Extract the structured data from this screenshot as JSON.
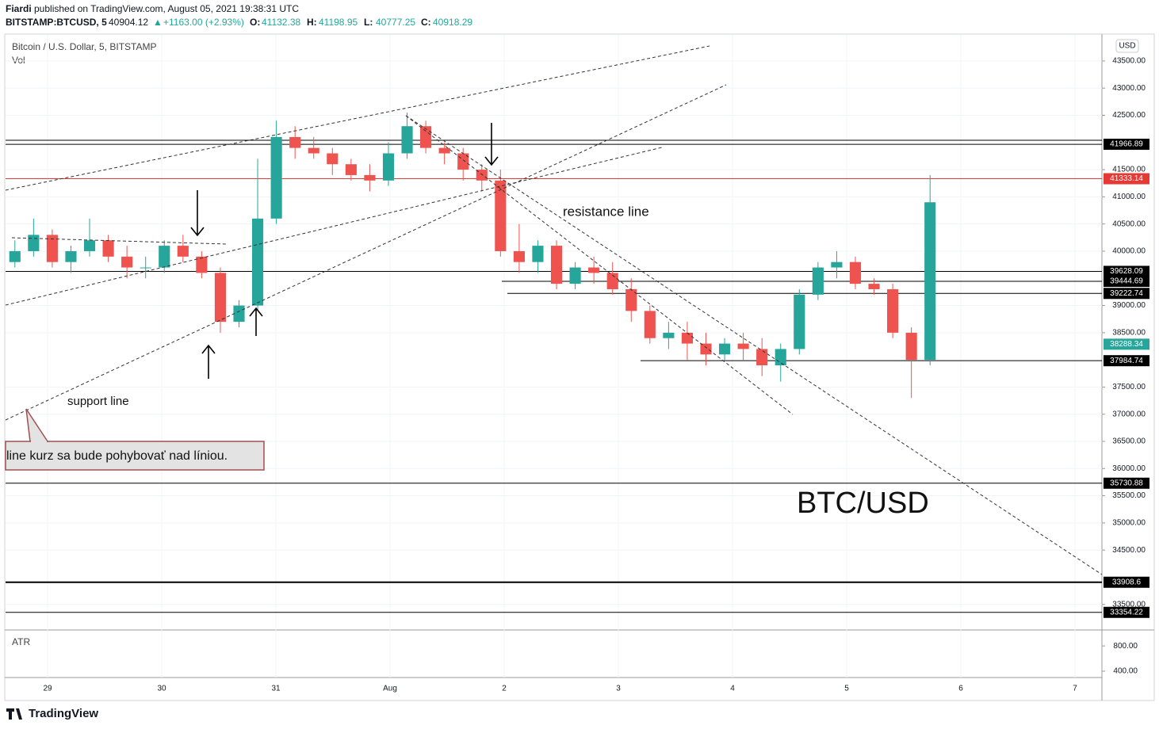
{
  "header": {
    "author": "Fiardi",
    "published": "published on TradingView.com, August 05, 2021 19:38:31 UTC",
    "symbol": "BITSTAMP:BTCUSD, 5",
    "last": "40904.12",
    "change": "+1163.00 (+2.93%)",
    "ohlc": [
      {
        "label": "O:",
        "value": "41132.38"
      },
      {
        "label": "H:",
        "value": "41198.95"
      },
      {
        "label": "L:",
        "value": "40777.25"
      },
      {
        "label": "C:",
        "value": "40918.29"
      }
    ]
  },
  "chart_data": {
    "type": "candlestick",
    "title": "Bitcoin / U.S. Dollar, 5, BITSTAMP",
    "volume_label": "Vol",
    "currency": "USD",
    "up_color": "#26a69a",
    "down_color": "#ef5350",
    "categories": [
      null,
      null,
      null,
      null,
      null,
      null,
      null,
      null,
      null,
      null,
      null,
      null,
      null,
      null,
      null,
      null,
      null,
      null,
      null,
      null,
      null,
      null,
      null,
      null,
      null,
      null,
      null,
      null,
      null,
      null,
      null,
      null,
      null,
      null,
      null,
      null,
      null,
      null,
      null,
      null,
      null,
      null,
      null,
      null,
      null,
      null,
      null,
      null,
      null,
      null
    ],
    "open": [
      39800,
      40000,
      40300,
      39800,
      40000,
      40200,
      39900,
      39700,
      39700,
      40100,
      39900,
      39600,
      38700,
      39000,
      40600,
      42100,
      41900,
      41800,
      41600,
      41400,
      41300,
      41800,
      42300,
      41900,
      41800,
      41500,
      41300,
      40000,
      39800,
      40100,
      39400,
      39700,
      39600,
      39300,
      38900,
      38400,
      38500,
      38300,
      38100,
      38300,
      38200,
      37900,
      38200,
      39200,
      39700,
      39800,
      39400,
      39300,
      38500,
      38000
    ],
    "high": [
      40200,
      40600,
      40400,
      40100,
      40600,
      40300,
      40100,
      39900,
      40200,
      40300,
      40000,
      39700,
      39100,
      41700,
      42400,
      42300,
      42100,
      41900,
      41700,
      41600,
      42000,
      42550,
      42400,
      42000,
      41900,
      41600,
      41500,
      40500,
      40200,
      40200,
      39800,
      39900,
      39800,
      39500,
      39000,
      38700,
      38700,
      38500,
      38400,
      38500,
      38400,
      38300,
      39300,
      39800,
      40000,
      39900,
      39500,
      39400,
      38600,
      41400
    ],
    "low": [
      39700,
      39900,
      39700,
      39600,
      39900,
      39800,
      39500,
      39500,
      39600,
      39800,
      39500,
      38500,
      38600,
      38900,
      40500,
      41700,
      41700,
      41400,
      41300,
      41100,
      41200,
      41700,
      41800,
      41600,
      41300,
      41100,
      39900,
      39600,
      39600,
      39300,
      39300,
      39400,
      39200,
      38700,
      38300,
      38200,
      38000,
      37900,
      38000,
      38000,
      37700,
      37600,
      38100,
      39100,
      39500,
      39300,
      39200,
      38400,
      37300,
      37900
    ],
    "close": [
      40000,
      40300,
      39800,
      40000,
      40200,
      39900,
      39700,
      39700,
      40100,
      39900,
      39600,
      38700,
      39000,
      40600,
      42100,
      41900,
      41800,
      41600,
      41400,
      41300,
      41800,
      42300,
      41900,
      41800,
      41500,
      41300,
      40000,
      39800,
      40100,
      39400,
      39700,
      39600,
      39300,
      38900,
      38400,
      38500,
      38300,
      38100,
      38300,
      38200,
      37900,
      38200,
      39200,
      39700,
      39800,
      39400,
      39300,
      38500,
      38000,
      40900
    ],
    "ylim": [
      33030,
      43980
    ],
    "yticks": [
      {
        "value": 43500,
        "label": "43500.00"
      },
      {
        "value": 43000,
        "label": "43000.00"
      },
      {
        "value": 42500,
        "label": "42500.00"
      },
      {
        "value": 41500,
        "label": "41500.00"
      },
      {
        "value": 41000,
        "label": "41000.00"
      },
      {
        "value": 40500,
        "label": "40500.00"
      },
      {
        "value": 40000,
        "label": "40000.00"
      },
      {
        "value": 39000,
        "label": "39000.00"
      },
      {
        "value": 38500,
        "label": "38500.00"
      },
      {
        "value": 37500,
        "label": "37500.00"
      },
      {
        "value": 37000,
        "label": "37000.00"
      },
      {
        "value": 36500,
        "label": "36500.00"
      },
      {
        "value": 36000,
        "label": "36000.00"
      },
      {
        "value": 35500,
        "label": "35500.00"
      },
      {
        "value": 35000,
        "label": "35000.00"
      },
      {
        "value": 34500,
        "label": "34500.00"
      },
      {
        "value": 33500,
        "label": "33500.00"
      }
    ],
    "grid": true,
    "levels": [
      {
        "value": 41966.89,
        "color": "#000000",
        "line": true
      },
      {
        "value": 41333.14,
        "color": "#e53935",
        "line": true
      },
      {
        "value": 39628.09,
        "color": "#000000",
        "line": true
      },
      {
        "value": 39444.69,
        "color": "#000000",
        "line": true
      },
      {
        "value": 39222.74,
        "color": "#000000",
        "line": true
      },
      {
        "value": 38288.34,
        "color": "#26a69a",
        "line": false
      },
      {
        "value": 37984.74,
        "color": "#000000",
        "line": true
      },
      {
        "value": 35730.88,
        "color": "#000000",
        "line": true
      },
      {
        "value": 33908.6,
        "color": "#000000",
        "line": true
      },
      {
        "value": 33354.22,
        "color": "#000000",
        "line": true
      }
    ],
    "x_labels": [
      "29",
      "30",
      "31",
      "Aug",
      "2",
      "3",
      "4",
      "5",
      "6",
      "7"
    ],
    "annotations": {
      "resistance": "resistance line",
      "support": "support line",
      "callout": "line kurz sa bude pohybovať nad líniou.",
      "watermark": "BTC/USD"
    },
    "atr": {
      "label": "ATR",
      "ylim": [
        300,
        1040
      ],
      "yticks": [
        {
          "value": 800,
          "label": "800.00"
        },
        {
          "value": 400,
          "label": "400.00"
        }
      ]
    }
  },
  "footer": {
    "brand": "TradingView"
  }
}
